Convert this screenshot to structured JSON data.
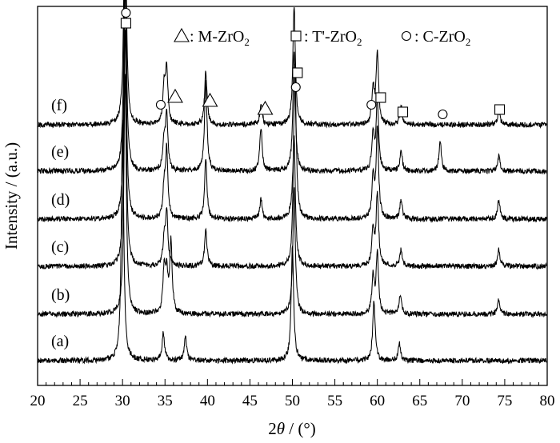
{
  "chart_data": {
    "type": "line",
    "xlabel": "2θ / (°)",
    "ylabel": "Intensity / (a.u.)",
    "xlim": [
      20,
      80
    ],
    "x_ticks": [
      "20",
      "25",
      "30",
      "35",
      "40",
      "45",
      "50",
      "55",
      "60",
      "65",
      "70",
      "75",
      "80"
    ],
    "legend": [
      {
        "marker": "triangle",
        "label": ": M-ZrO",
        "sub": "2"
      },
      {
        "marker": "square",
        "label": ": T'-ZrO",
        "sub": "2"
      },
      {
        "marker": "circle",
        "label": ": C-ZrO",
        "sub": "2"
      }
    ],
    "series": [
      {
        "name": "(a)",
        "peaks": [
          [
            30.0,
            10.0
          ],
          [
            34.8,
            1.2
          ],
          [
            37.4,
            1.0
          ],
          [
            50.0,
            4.8
          ],
          [
            59.6,
            2.5
          ],
          [
            62.6,
            0.7
          ]
        ]
      },
      {
        "name": "(b)",
        "peaks": [
          [
            30.3,
            10.0
          ],
          [
            34.9,
            1.8
          ],
          [
            35.2,
            1.5
          ],
          [
            35.7,
            3.0
          ],
          [
            50.2,
            5.2
          ],
          [
            59.5,
            1.5
          ],
          [
            60.0,
            2.5
          ],
          [
            62.7,
            0.8
          ],
          [
            74.3,
            0.6
          ]
        ]
      },
      {
        "name": "(c)",
        "peaks": [
          [
            30.3,
            10.0
          ],
          [
            34.9,
            1.0
          ],
          [
            35.2,
            2.2
          ],
          [
            39.8,
            1.5
          ],
          [
            50.2,
            5.5
          ],
          [
            59.5,
            1.5
          ],
          [
            60.0,
            3.0
          ],
          [
            62.8,
            0.7
          ],
          [
            74.3,
            0.7
          ]
        ]
      },
      {
        "name": "(d)",
        "peaks": [
          [
            30.3,
            10.0
          ],
          [
            34.9,
            1.2
          ],
          [
            35.2,
            2.8
          ],
          [
            39.8,
            2.5
          ],
          [
            46.3,
            0.8
          ],
          [
            50.3,
            6.5
          ],
          [
            59.5,
            1.7
          ],
          [
            60.0,
            3.8
          ],
          [
            62.8,
            0.8
          ],
          [
            74.3,
            0.8
          ]
        ]
      },
      {
        "name": "(e)",
        "peaks": [
          [
            30.3,
            10.0
          ],
          [
            34.9,
            1.2
          ],
          [
            35.2,
            2.2
          ],
          [
            39.8,
            3.8
          ],
          [
            46.3,
            1.8
          ],
          [
            50.2,
            5.0
          ],
          [
            59.5,
            1.5
          ],
          [
            60.0,
            3.0
          ],
          [
            62.8,
            0.8
          ],
          [
            67.4,
            1.2
          ],
          [
            74.3,
            0.6
          ]
        ]
      },
      {
        "name": "(f)",
        "peaks": [
          [
            30.3,
            10.0
          ],
          [
            34.9,
            1.5
          ],
          [
            35.2,
            2.2
          ],
          [
            39.8,
            2.2
          ],
          [
            46.3,
            0.8
          ],
          [
            50.2,
            5.0
          ],
          [
            59.5,
            1.5
          ],
          [
            60.0,
            3.0
          ],
          [
            62.8,
            0.8
          ],
          [
            74.3,
            0.6
          ]
        ]
      }
    ],
    "annotations": [
      {
        "marker": "circle",
        "x": 30.4,
        "series": "(f)"
      },
      {
        "marker": "square",
        "x": 30.4,
        "series": "(f)"
      },
      {
        "marker": "circle",
        "x": 34.5,
        "series": "(f)"
      },
      {
        "marker": "triangle",
        "x": 36.2,
        "series": "(f)"
      },
      {
        "marker": "triangle",
        "x": 40.3,
        "series": "(f)"
      },
      {
        "marker": "triangle",
        "x": 46.8,
        "series": "(f)"
      },
      {
        "marker": "circle",
        "x": 50.4,
        "series": "(f)"
      },
      {
        "marker": "square",
        "x": 50.6,
        "series": "(f)"
      },
      {
        "marker": "circle",
        "x": 59.3,
        "series": "(f)"
      },
      {
        "marker": "square",
        "x": 60.4,
        "series": "(f)"
      },
      {
        "marker": "square",
        "x": 63.0,
        "series": "(f)"
      },
      {
        "marker": "circle",
        "x": 67.7,
        "series": "(f)"
      },
      {
        "marker": "square",
        "x": 74.4,
        "series": "(f)"
      }
    ]
  }
}
